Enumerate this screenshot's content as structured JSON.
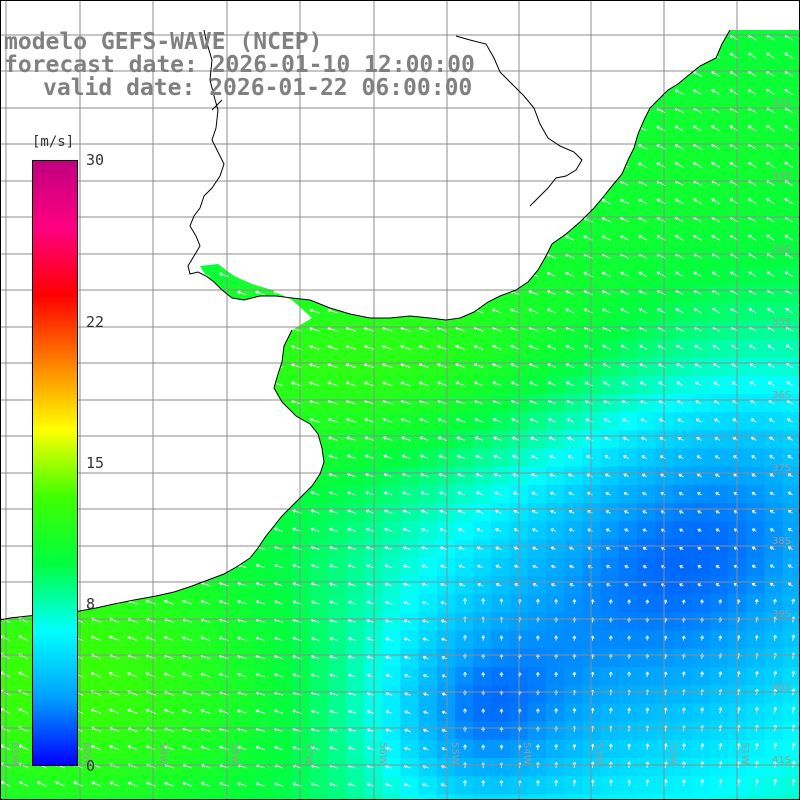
{
  "title": {
    "line1": "modelo GEFS-WAVE (NCEP)",
    "line2": "forecast date: 2026-01-10 12:00:00",
    "line3": "valid date: 2026-01-22 06:00:00"
  },
  "colorbar": {
    "unit": "[m/s]",
    "ticks": [
      "30",
      "22",
      "15",
      "8",
      "0"
    ],
    "tick_values": [
      30,
      22,
      15,
      8,
      0
    ],
    "min": 0,
    "max": 30,
    "colors": [
      "#0000ff",
      "#00a0ff",
      "#00ffff",
      "#00ff40",
      "#40ff00",
      "#ffff00",
      "#ff8000",
      "#ff0000",
      "#ff0080",
      "#c00080"
    ]
  },
  "map": {
    "lat_labels": [
      "32S",
      "33S",
      "34S",
      "35S",
      "36S",
      "37S",
      "38S",
      "39S",
      "40S",
      "41S"
    ],
    "lon_labels": [
      "61W",
      "60W",
      "59W",
      "58W",
      "57W",
      "56W",
      "55W",
      "54W",
      "53W",
      "52W",
      "51W"
    ],
    "land_color": "#ffffff",
    "coast_color": "#000000",
    "grid_color": "#808080",
    "arrow_color": "#ffffff",
    "lat_range": [
      -41.4,
      -30.2
    ],
    "lon_range": [
      -61.6,
      -50.8
    ]
  }
}
